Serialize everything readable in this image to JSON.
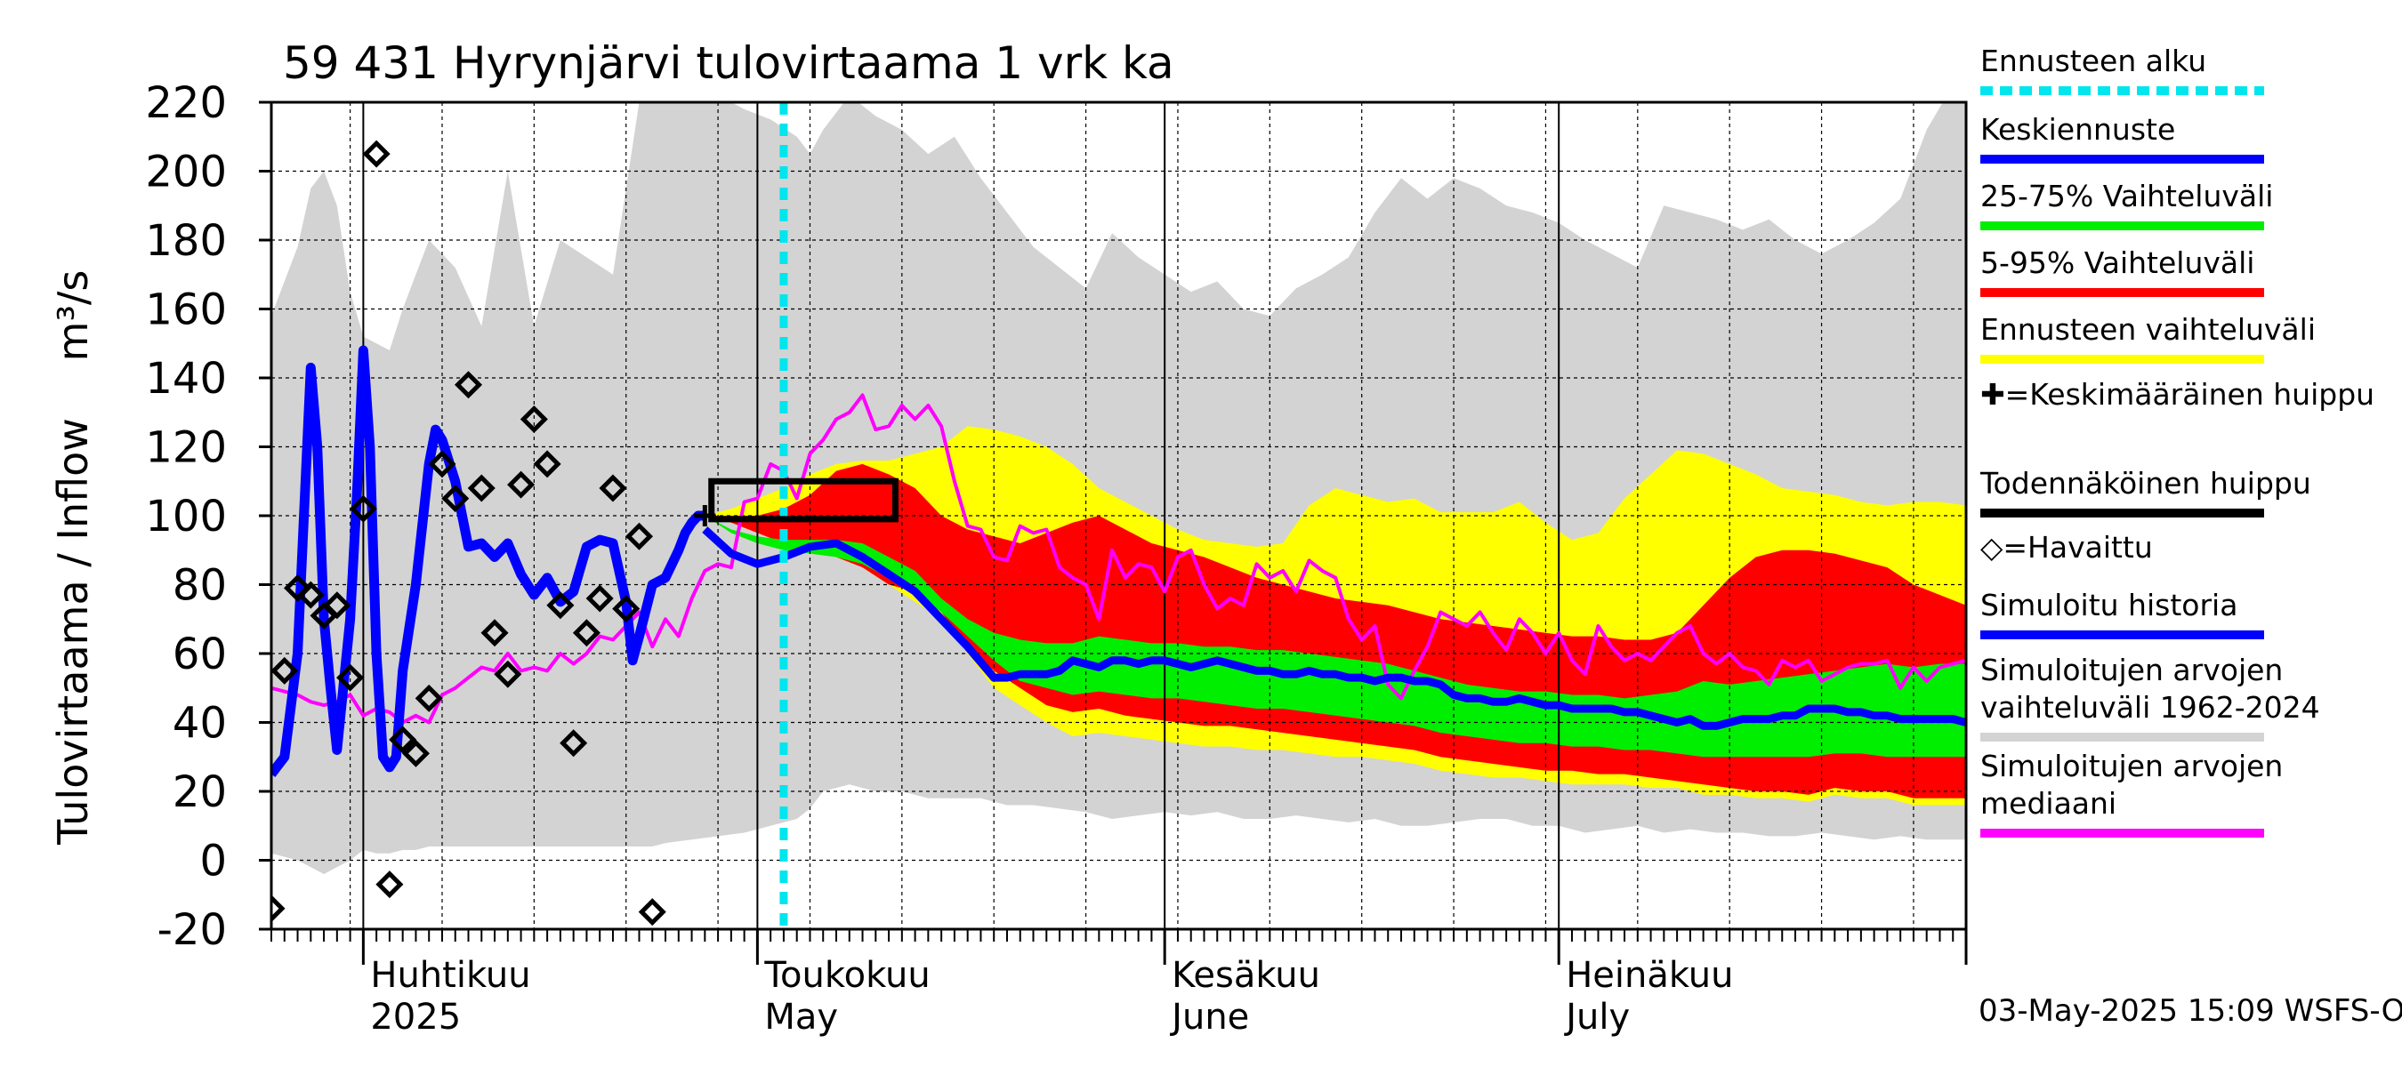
{
  "chart_data": {
    "type": "area",
    "title": "59 431 Hyrynjärvi tulovirtaama 1 vrk ka",
    "ylabel": "Tulovirtaama / Inflow",
    "yunit": "m³/s",
    "ylim": [
      -20,
      220
    ],
    "yticks": [
      -20,
      0,
      20,
      40,
      60,
      80,
      100,
      120,
      140,
      160,
      180,
      200,
      220
    ],
    "xlim": [
      "2025-03-25",
      "2025-08-01"
    ],
    "grid": true,
    "legend_position": "right",
    "month_labels": [
      {
        "date": "2025-04-01",
        "line1": "Huhtikuu",
        "line2": "2025"
      },
      {
        "date": "2025-05-01",
        "line1": "Toukokuu",
        "line2": "May"
      },
      {
        "date": "2025-06-01",
        "line1": "Kesäkuu",
        "line2": "June"
      },
      {
        "date": "2025-07-01",
        "line1": "Heinäkuu",
        "line2": "July"
      }
    ],
    "forecast_start": "2025-05-03",
    "footer": "03-May-2025 15:09 WSFS-O",
    "legend": [
      {
        "label": "Ennusteen alku",
        "color": "#00e5ee",
        "style": "dashed"
      },
      {
        "label": "Keskiennuste",
        "color": "#0000ff",
        "style": "line"
      },
      {
        "label": "25-75% Vaihteluväli",
        "color": "#00ee00",
        "style": "line"
      },
      {
        "label": "5-95% Vaihteluväli",
        "color": "#ff0000",
        "style": "line"
      },
      {
        "label": "Ennusteen vaihteluväli",
        "color": "#ffff00",
        "style": "line"
      },
      {
        "label": "✚=Keskimääräinen huippu",
        "color": "#000000",
        "style": "none"
      },
      {
        "label": "Todennäköinen huippu",
        "color": "#000000",
        "style": "line"
      },
      {
        "label": "◇=Havaittu",
        "color": "#000000",
        "style": "none"
      },
      {
        "label": "Simuloitu historia",
        "color": "#0000ff",
        "style": "line"
      },
      {
        "label": "Simuloitujen arvojen vaihteluväli 1962-2024",
        "color": "#d3d3d3",
        "style": "line"
      },
      {
        "label": "Simuloitujen arvojen mediaani",
        "color": "#ff00ff",
        "style": "line"
      }
    ],
    "history_range": {
      "x": [
        0,
        2,
        3,
        4,
        5,
        6,
        7,
        8,
        9,
        10,
        11,
        12,
        14,
        16,
        18,
        20,
        22,
        24,
        26,
        28,
        29,
        30,
        32,
        34,
        36,
        38,
        40,
        41,
        42,
        44,
        46,
        48,
        50,
        52,
        54,
        56,
        58,
        60,
        62,
        64,
        66,
        68,
        70,
        72,
        74,
        76,
        78,
        80,
        82,
        84,
        86,
        88,
        90,
        92,
        94,
        96,
        98,
        100,
        102,
        104,
        106,
        108,
        110,
        112,
        114,
        116,
        118,
        120,
        122,
        124,
        126,
        128,
        129
      ],
      "upper": [
        158,
        178,
        195,
        200,
        190,
        165,
        152,
        150,
        148,
        160,
        170,
        180,
        172,
        155,
        200,
        155,
        180,
        175,
        170,
        220,
        228,
        228,
        224,
        222,
        218,
        215,
        210,
        205,
        212,
        222,
        216,
        212,
        205,
        210,
        198,
        188,
        178,
        172,
        166,
        182,
        175,
        170,
        165,
        168,
        160,
        158,
        166,
        170,
        175,
        188,
        198,
        192,
        198,
        195,
        190,
        188,
        185,
        180,
        176,
        172,
        190,
        188,
        186,
        183,
        186,
        180,
        176,
        180,
        185,
        192,
        212,
        225,
        225
      ],
      "lower": [
        2,
        0,
        -2,
        -4,
        -2,
        0,
        3,
        2,
        2,
        3,
        3,
        4,
        4,
        4,
        4,
        4,
        4,
        4,
        4,
        4,
        4,
        5,
        6,
        7,
        8,
        10,
        12,
        15,
        20,
        22,
        20,
        20,
        18,
        18,
        18,
        16,
        16,
        15,
        14,
        12,
        13,
        14,
        13,
        14,
        12,
        12,
        13,
        12,
        11,
        12,
        10,
        10,
        11,
        12,
        12,
        10,
        10,
        8,
        9,
        10,
        8,
        9,
        8,
        8,
        7,
        7,
        8,
        7,
        6,
        7,
        6,
        6,
        6
      ]
    },
    "forecast_bands": {
      "x": [
        33,
        35,
        37,
        39,
        41,
        43,
        45,
        47,
        49,
        51,
        53,
        55,
        57,
        59,
        61,
        63,
        65,
        67,
        69,
        71,
        73,
        75,
        77,
        79,
        81,
        83,
        85,
        87,
        89,
        91,
        93,
        95,
        97,
        99,
        101,
        103,
        105,
        107,
        109,
        111,
        113,
        115,
        117,
        119,
        121,
        123,
        125,
        127,
        129
      ],
      "p0": [
        100,
        98,
        95,
        92,
        90,
        88,
        85,
        80,
        75,
        70,
        60,
        50,
        45,
        40,
        36,
        37,
        36,
        35,
        34,
        33,
        33,
        32,
        32,
        31,
        30,
        30,
        29,
        28,
        26,
        25,
        24,
        24,
        23,
        22,
        22,
        22,
        21,
        21,
        19,
        19,
        18,
        18,
        17,
        19,
        18,
        18,
        16,
        16,
        16
      ],
      "p5": [
        100,
        98,
        95,
        92,
        90,
        88,
        85,
        80,
        78,
        72,
        62,
        55,
        50,
        45,
        43,
        44,
        42,
        41,
        40,
        39,
        39,
        38,
        37,
        36,
        35,
        34,
        33,
        32,
        30,
        29,
        28,
        27,
        26,
        26,
        25,
        25,
        24,
        23,
        22,
        21,
        20,
        20,
        19,
        21,
        20,
        20,
        18,
        18,
        18
      ],
      "p25": [
        100,
        95,
        92,
        90,
        89,
        88,
        86,
        82,
        78,
        72,
        65,
        58,
        52,
        50,
        48,
        49,
        48,
        47,
        47,
        46,
        45,
        44,
        44,
        43,
        42,
        41,
        40,
        39,
        37,
        36,
        35,
        34,
        34,
        33,
        33,
        32,
        32,
        31,
        30,
        30,
        30,
        30,
        30,
        31,
        31,
        30,
        30,
        30,
        30
      ],
      "p75": [
        100,
        96,
        94,
        93,
        93,
        93,
        92,
        88,
        84,
        76,
        70,
        66,
        64,
        63,
        63,
        65,
        64,
        63,
        63,
        62,
        62,
        61,
        61,
        60,
        59,
        58,
        57,
        55,
        53,
        51,
        50,
        49,
        49,
        48,
        48,
        47,
        48,
        49,
        52,
        51,
        52,
        53,
        54,
        55,
        56,
        57,
        56,
        57,
        57
      ],
      "p95": [
        100,
        100,
        100,
        102,
        106,
        113,
        115,
        112,
        108,
        100,
        96,
        94,
        92,
        95,
        98,
        100,
        96,
        92,
        90,
        88,
        85,
        82,
        80,
        78,
        76,
        75,
        74,
        72,
        70,
        69,
        68,
        67,
        66,
        65,
        65,
        64,
        64,
        66,
        74,
        82,
        88,
        90,
        90,
        89,
        87,
        85,
        80,
        77,
        74
      ],
      "p100": [
        100,
        102,
        105,
        108,
        112,
        115,
        116,
        116,
        118,
        120,
        126,
        125,
        123,
        120,
        115,
        108,
        104,
        100,
        96,
        93,
        92,
        91,
        92,
        103,
        108,
        106,
        104,
        105,
        101,
        101,
        101,
        104,
        98,
        93,
        95,
        105,
        112,
        119,
        118,
        115,
        112,
        108,
        107,
        106,
        104,
        103,
        104,
        104,
        103
      ]
    },
    "forecast_mean": {
      "x": [
        33,
        35,
        37,
        39,
        41,
        43,
        45,
        47,
        49,
        51,
        53,
        55,
        56,
        57,
        58,
        59,
        60,
        61,
        62,
        63,
        64,
        65,
        66,
        67,
        68,
        69,
        70,
        71,
        72,
        73,
        74,
        75,
        76,
        77,
        78,
        79,
        80,
        81,
        82,
        83,
        84,
        85,
        86,
        87,
        88,
        89,
        90,
        91,
        92,
        93,
        94,
        95,
        96,
        97,
        98,
        99,
        100,
        101,
        102,
        103,
        104,
        105,
        106,
        107,
        108,
        109,
        110,
        111,
        112,
        113,
        114,
        115,
        116,
        117,
        118,
        119,
        120,
        121,
        122,
        123,
        124,
        125,
        126,
        127,
        128,
        129
      ],
      "y": [
        96,
        89,
        86,
        88,
        91,
        92,
        88,
        83,
        78,
        70,
        62,
        53,
        53,
        54,
        54,
        54,
        55,
        58,
        57,
        56,
        58,
        58,
        57,
        58,
        58,
        57,
        56,
        57,
        58,
        57,
        56,
        55,
        55,
        54,
        54,
        55,
        54,
        54,
        53,
        53,
        52,
        53,
        53,
        52,
        52,
        51,
        48,
        47,
        47,
        46,
        46,
        47,
        46,
        45,
        45,
        44,
        44,
        44,
        44,
        43,
        43,
        42,
        41,
        40,
        41,
        39,
        39,
        40,
        41,
        41,
        41,
        42,
        42,
        44,
        44,
        44,
        43,
        43,
        42,
        42,
        41,
        41,
        41,
        41,
        41,
        40
      ]
    },
    "simulated_history": {
      "x": [
        0,
        1,
        2,
        3,
        3.5,
        4,
        4.5,
        5,
        6,
        6.5,
        7,
        7.5,
        8,
        8.5,
        9,
        9.5,
        10,
        11,
        12,
        12.5,
        13,
        14,
        15,
        16,
        16.5,
        17,
        18,
        19,
        20,
        21,
        22,
        23,
        24,
        25,
        26,
        27,
        27.5,
        28,
        29,
        30,
        31,
        31.5,
        32,
        32.5,
        33
      ],
      "y": [
        25,
        30,
        60,
        143,
        120,
        70,
        50,
        32,
        70,
        105,
        148,
        120,
        60,
        30,
        27,
        30,
        55,
        80,
        115,
        125,
        122,
        110,
        91,
        92,
        90,
        88,
        92,
        83,
        77,
        82,
        75,
        78,
        91,
        93,
        92,
        75,
        58,
        65,
        80,
        82,
        90,
        95,
        98,
        100,
        100
      ]
    },
    "median": {
      "x": [
        0,
        2,
        3,
        4,
        5,
        6,
        7,
        8,
        9,
        10,
        11,
        12,
        13,
        14,
        15,
        16,
        17,
        18,
        19,
        20,
        21,
        22,
        23,
        24,
        25,
        26,
        27,
        28,
        29,
        30,
        31,
        32,
        33,
        34,
        35,
        36,
        37,
        38,
        39,
        40,
        41,
        42,
        43,
        44,
        45,
        46,
        47,
        48,
        49,
        50,
        51,
        52,
        53,
        54,
        55,
        56,
        57,
        58,
        59,
        60,
        61,
        62,
        63,
        64,
        65,
        66,
        67,
        68,
        69,
        70,
        71,
        72,
        73,
        74,
        75,
        76,
        77,
        78,
        79,
        80,
        81,
        82,
        83,
        84,
        85,
        86,
        87,
        88,
        89,
        90,
        91,
        92,
        93,
        94,
        95,
        96,
        97,
        98,
        99,
        100,
        101,
        102,
        103,
        104,
        105,
        106,
        107,
        108,
        109,
        110,
        111,
        112,
        113,
        114,
        115,
        116,
        117,
        118,
        119,
        120,
        121,
        122,
        123,
        124,
        125,
        126,
        127,
        128,
        129
      ],
      "y": [
        50,
        48,
        46,
        45,
        46,
        48,
        42,
        44,
        43,
        40,
        42,
        40,
        48,
        50,
        53,
        56,
        55,
        60,
        55,
        56,
        55,
        60,
        57,
        60,
        65,
        64,
        68,
        72,
        62,
        70,
        65,
        76,
        84,
        86,
        85,
        104,
        105,
        115,
        113,
        105,
        118,
        122,
        128,
        130,
        135,
        125,
        126,
        132,
        128,
        132,
        126,
        110,
        97,
        96,
        88,
        87,
        97,
        95,
        96,
        85,
        82,
        80,
        70,
        90,
        82,
        86,
        85,
        78,
        88,
        90,
        80,
        73,
        76,
        74,
        86,
        82,
        84,
        78,
        87,
        84,
        82,
        70,
        64,
        68,
        51,
        47,
        55,
        62,
        72,
        70,
        68,
        72,
        66,
        61,
        70,
        66,
        60,
        66,
        58,
        54,
        68,
        62,
        58,
        60,
        58,
        62,
        66,
        68,
        60,
        57,
        60,
        56,
        55,
        51,
        58,
        56,
        58,
        52,
        54,
        56,
        57,
        57,
        58,
        50,
        56,
        52,
        56,
        57,
        58
      ]
    },
    "observed": [
      {
        "x": 0,
        "y": -14
      },
      {
        "x": 1,
        "y": 55
      },
      {
        "x": 2,
        "y": 79
      },
      {
        "x": 3,
        "y": 77
      },
      {
        "x": 4,
        "y": 71
      },
      {
        "x": 5,
        "y": 74
      },
      {
        "x": 6,
        "y": 53
      },
      {
        "x": 7,
        "y": 102
      },
      {
        "x": 8,
        "y": 205
      },
      {
        "x": 9,
        "y": -7
      },
      {
        "x": 10,
        "y": 35
      },
      {
        "x": 11,
        "y": 31
      },
      {
        "x": 12,
        "y": 47
      },
      {
        "x": 13,
        "y": 115
      },
      {
        "x": 14,
        "y": 105
      },
      {
        "x": 15,
        "y": 138
      },
      {
        "x": 16,
        "y": 108
      },
      {
        "x": 17,
        "y": 66
      },
      {
        "x": 18,
        "y": 54
      },
      {
        "x": 19,
        "y": 109
      },
      {
        "x": 20,
        "y": 128
      },
      {
        "x": 21,
        "y": 115
      },
      {
        "x": 22,
        "y": 74
      },
      {
        "x": 23,
        "y": 34
      },
      {
        "x": 24,
        "y": 66
      },
      {
        "x": 25,
        "y": 76
      },
      {
        "x": 26,
        "y": 108
      },
      {
        "x": 27,
        "y": 73
      },
      {
        "x": 28,
        "y": 94
      },
      {
        "x": 29,
        "y": -15
      }
    ],
    "mean_peak": {
      "x": 33,
      "y": 100
    },
    "probable_peak": {
      "x0": 33.5,
      "x1": 47.5,
      "y0": 99,
      "y1": 110
    }
  }
}
